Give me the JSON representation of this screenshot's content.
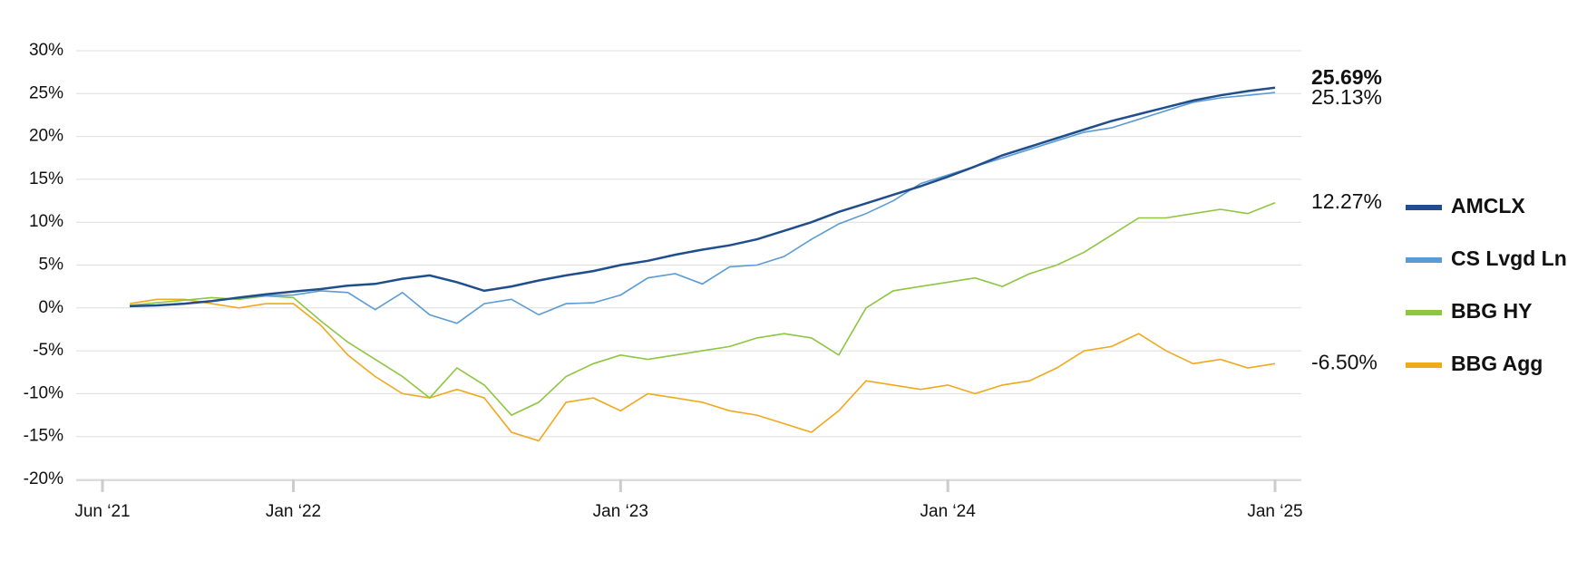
{
  "chart_data": {
    "type": "line",
    "x": [
      "2021-07",
      "2021-08",
      "2021-09",
      "2021-10",
      "2021-11",
      "2021-12",
      "2022-01",
      "2022-02",
      "2022-03",
      "2022-04",
      "2022-05",
      "2022-06",
      "2022-07",
      "2022-08",
      "2022-09",
      "2022-10",
      "2022-11",
      "2022-12",
      "2023-01",
      "2023-02",
      "2023-03",
      "2023-04",
      "2023-05",
      "2023-06",
      "2023-07",
      "2023-08",
      "2023-09",
      "2023-10",
      "2023-11",
      "2023-12",
      "2024-01",
      "2024-02",
      "2024-03",
      "2024-04",
      "2024-05",
      "2024-06",
      "2024-07",
      "2024-08",
      "2024-09",
      "2024-10",
      "2024-11",
      "2024-12",
      "2025-01"
    ],
    "xlim": [
      "2021-06",
      "2025-01"
    ],
    "xticks": [
      {
        "value": "2021-06",
        "label": "Jun ‘21"
      },
      {
        "value": "2022-01",
        "label": "Jan ‘22"
      },
      {
        "value": "2023-01",
        "label": "Jan ‘23"
      },
      {
        "value": "2024-01",
        "label": "Jan ‘24"
      },
      {
        "value": "2025-01",
        "label": "Jan ‘25"
      }
    ],
    "ylim": [
      -20,
      30
    ],
    "yticks": [
      {
        "value": -20,
        "label": "-20%"
      },
      {
        "value": -15,
        "label": "-15%"
      },
      {
        "value": -10,
        "label": "-10%"
      },
      {
        "value": -5,
        "label": "-5%"
      },
      {
        "value": 0,
        "label": "0%"
      },
      {
        "value": 5,
        "label": "5%"
      },
      {
        "value": 10,
        "label": "10%"
      },
      {
        "value": 15,
        "label": "15%"
      },
      {
        "value": 20,
        "label": "20%"
      },
      {
        "value": 25,
        "label": "25%"
      },
      {
        "value": 30,
        "label": "30%"
      }
    ],
    "grid": true,
    "legend": "right",
    "series": [
      {
        "name": "AMCLX",
        "color": "#1f4e8c",
        "values": [
          0.2,
          0.3,
          0.5,
          0.8,
          1.2,
          1.6,
          1.9,
          2.2,
          2.6,
          2.8,
          3.4,
          3.8,
          3.0,
          2.0,
          2.5,
          3.2,
          3.8,
          4.3,
          5.0,
          5.5,
          6.2,
          6.8,
          7.3,
          8.0,
          9.0,
          10.0,
          11.2,
          12.2,
          13.2,
          14.2,
          15.3,
          16.5,
          17.8,
          18.8,
          19.8,
          20.8,
          21.8,
          22.6,
          23.4,
          24.2,
          24.8,
          25.3,
          25.69
        ],
        "value_labels": [
          null,
          null,
          null,
          null,
          null,
          null,
          null,
          null,
          null,
          null,
          null,
          null,
          null,
          null,
          null,
          null,
          null,
          null,
          null,
          null,
          null,
          null,
          null,
          null,
          null,
          null,
          null,
          null,
          null,
          null,
          null,
          null,
          null,
          null,
          null,
          null,
          null,
          null,
          null,
          null,
          null,
          null,
          "25.69%"
        ]
      },
      {
        "name": "CS Lvgd Ln",
        "color": "#5b9bd5",
        "values": [
          0.2,
          0.3,
          0.5,
          0.8,
          1.2,
          1.4,
          1.5,
          2.0,
          1.8,
          -0.2,
          1.8,
          -0.8,
          -1.8,
          0.5,
          1.0,
          -0.8,
          0.5,
          0.6,
          1.5,
          3.5,
          4.0,
          2.8,
          4.8,
          5.0,
          6.0,
          8.0,
          9.8,
          11.0,
          12.5,
          14.5,
          15.5,
          16.5,
          17.5,
          18.5,
          19.5,
          20.5,
          21.0,
          22.0,
          23.0,
          24.0,
          24.5,
          24.8,
          25.13
        ],
        "value_labels": [
          null,
          null,
          null,
          null,
          null,
          null,
          null,
          null,
          null,
          null,
          null,
          null,
          null,
          null,
          null,
          null,
          null,
          null,
          null,
          null,
          null,
          null,
          null,
          null,
          null,
          null,
          null,
          null,
          null,
          null,
          null,
          null,
          null,
          null,
          null,
          null,
          null,
          null,
          null,
          null,
          null,
          null,
          "25.13%"
        ]
      },
      {
        "name": "BBG HY",
        "color": "#8dc63f",
        "values": [
          0.3,
          0.6,
          0.9,
          1.2,
          1.0,
          1.4,
          1.2,
          -1.5,
          -4.0,
          -6.0,
          -8.0,
          -10.5,
          -7.0,
          -9.0,
          -12.5,
          -11.0,
          -8.0,
          -6.5,
          -5.5,
          -6.0,
          -5.5,
          -5.0,
          -4.5,
          -3.5,
          -3.0,
          -3.5,
          -5.5,
          0,
          2.0,
          2.5,
          3.0,
          3.5,
          2.5,
          4.0,
          5.0,
          6.5,
          8.5,
          10.5,
          10.5,
          11.0,
          11.5,
          11.0,
          12.27
        ],
        "value_labels": [
          null,
          null,
          null,
          null,
          null,
          null,
          null,
          null,
          null,
          null,
          null,
          null,
          null,
          null,
          null,
          null,
          null,
          null,
          null,
          null,
          null,
          null,
          null,
          null,
          null,
          null,
          null,
          null,
          null,
          null,
          null,
          null,
          null,
          null,
          null,
          null,
          null,
          null,
          null,
          null,
          null,
          null,
          "12.27%"
        ]
      },
      {
        "name": "BBG Agg",
        "color": "#f0a81c",
        "values": [
          0.5,
          1.0,
          1.0,
          0.5,
          0.0,
          0.5,
          0.5,
          -2,
          -5.5,
          -8,
          -10,
          -10.5,
          -9.5,
          -10.5,
          -14.5,
          -15.5,
          -11,
          -10.5,
          -12,
          -10,
          -10.5,
          -11,
          -12,
          -12.5,
          -13.5,
          -14.5,
          -12,
          -8.5,
          -9.0,
          -9.5,
          -9.0,
          -10.0,
          -9.0,
          -8.5,
          -7.0,
          -5.0,
          -4.5,
          -3.0,
          -5.0,
          -6.5,
          -6.0,
          -7.0,
          -6.5
        ],
        "value_labels": [
          null,
          null,
          null,
          null,
          null,
          null,
          null,
          null,
          null,
          null,
          null,
          null,
          null,
          null,
          null,
          null,
          null,
          null,
          null,
          null,
          null,
          null,
          null,
          null,
          null,
          null,
          null,
          null,
          null,
          null,
          null,
          null,
          null,
          null,
          null,
          null,
          null,
          null,
          null,
          null,
          null,
          null,
          "-6.50%"
        ]
      }
    ]
  }
}
